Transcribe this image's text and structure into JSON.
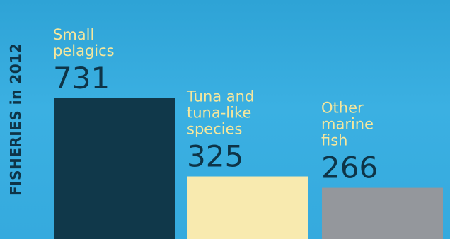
{
  "chart_data": {
    "type": "bar",
    "title": "FISHERIES in 2012",
    "categories": [
      [
        "Small",
        "pelagics"
      ],
      [
        "Tuna and",
        "tuna-like",
        "species"
      ],
      [
        "Other",
        "marine",
        "fish"
      ]
    ],
    "values": [
      731,
      325,
      266
    ],
    "value_labels": [
      "731",
      "325",
      "266"
    ],
    "colors": [
      "#10384a",
      "#f8eaaf",
      "#94979c"
    ],
    "label_color": "#f6e79c",
    "value_color": "#0e3447",
    "background": "#36aadd"
  }
}
